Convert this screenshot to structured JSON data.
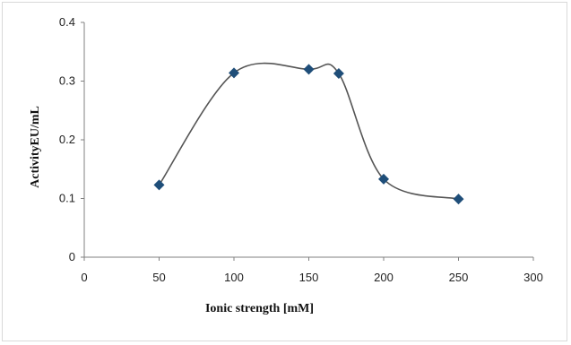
{
  "chart_data": {
    "type": "scatter",
    "title": "",
    "xlabel": "Ionic strength [mM]",
    "ylabel": "ActivityEU/mL",
    "xlim": [
      0,
      300
    ],
    "ylim": [
      0,
      0.4
    ],
    "x_ticks": [
      "0",
      "50",
      "100",
      "150",
      "200",
      "250",
      "300"
    ],
    "y_ticks": [
      "0",
      "0.1",
      "0.2",
      "0.3",
      "0.4"
    ],
    "grid": false,
    "legend": "none",
    "smooth_line": true,
    "series": [
      {
        "x": [
          50,
          100,
          150,
          170,
          200,
          250
        ],
        "y": [
          0.123,
          0.314,
          0.32,
          0.313,
          0.133,
          0.099
        ]
      }
    ],
    "colors": {
      "marker": "#1f4e79",
      "line": "#555555",
      "axis": "#808080"
    }
  }
}
